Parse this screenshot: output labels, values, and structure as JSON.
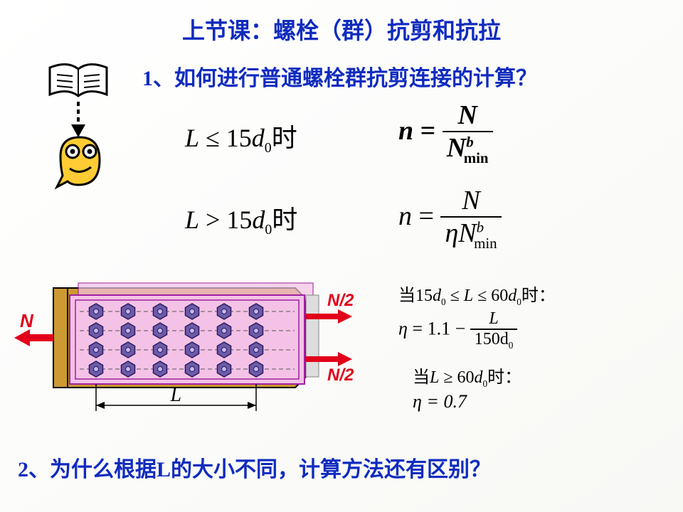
{
  "title": "上节课：螺栓（群）抗剪和抗拉",
  "q1": "1、如何进行普通螺栓群抗剪连接的计算？",
  "q2": "2、为什么根据L的大小不同，计算方法还有区别？",
  "cond1_prefix": "L",
  "cond1_op": "≤",
  "cond1_val": "15",
  "cond1_var": "d",
  "cond1_sub": "0",
  "cond_suffix": "时",
  "cond2_op": ">",
  "eq_n": "n",
  "eq_eq": " = ",
  "eq_N": "N",
  "eq_Nmin": "N",
  "eq_min": "min",
  "eq_b": "b",
  "eta": "η",
  "side1_text": "当15d₀ ≤ L ≤ 60d₀时：",
  "side2_lhs": "η",
  "side2_eq": " = 1.1 − ",
  "side2_num": "L",
  "side2_den": "150d",
  "side2_densub": "0",
  "side3_text": "当L ≥ 60d₀时：",
  "side4": "η = 0.7",
  "diagram": {
    "N_left": "N",
    "N_right1": "N/2",
    "N_right2": "N/2",
    "L": "L",
    "rows": 4,
    "cols": 6,
    "plate_color": "#f4c2e6",
    "back_color": "#cc9933",
    "bolt_color": "#6b5ba8",
    "arrow_color": "#e2001a"
  },
  "colors": {
    "blue": "#0f2bbf"
  }
}
